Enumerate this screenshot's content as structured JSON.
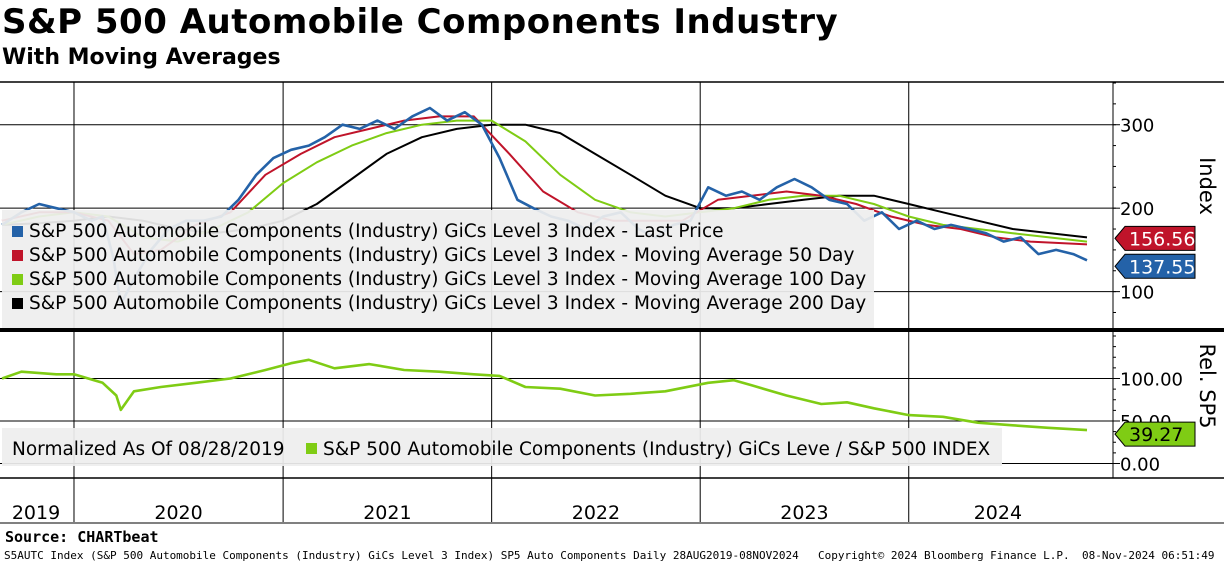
{
  "header": {
    "title": "S&P 500 Automobile Components Industry",
    "subtitle": "With Moving Averages"
  },
  "colors": {
    "last_price": "#2462a8",
    "ma50": "#c0142a",
    "ma100": "#7fcc14",
    "ma200": "#000000",
    "rel": "#7fcc14",
    "legend_bg": "#eeeeee"
  },
  "chart_data": [
    {
      "type": "line",
      "panel": "upper",
      "ylabel": "Index",
      "ylim": [
        60,
        350
      ],
      "yticks": [
        {
          "value": 100,
          "label": "100"
        },
        {
          "value": 200,
          "label": "200"
        },
        {
          "value": 300,
          "label": "300"
        }
      ],
      "grid": true,
      "legend_position": "bottom-left",
      "last_value_labels": [
        {
          "series": "ma50",
          "label": "156.56",
          "value": 156.56
        },
        {
          "series": "last_price",
          "label": "137.55",
          "value": 137.55
        }
      ],
      "series": [
        {
          "name": "S&P 500 Automobile Components (Industry) GiCs Level 3 Index - Last Price",
          "key": "last_price",
          "x": [
            "2019-08-28",
            "2019-10-01",
            "2019-11-01",
            "2019-12-01",
            "2020-01-01",
            "2020-02-01",
            "2020-02-20",
            "2020-03-10",
            "2020-03-23",
            "2020-04-15",
            "2020-05-15",
            "2020-06-15",
            "2020-07-15",
            "2020-08-15",
            "2020-09-15",
            "2020-10-15",
            "2020-11-15",
            "2020-12-15",
            "2021-01-15",
            "2021-02-15",
            "2021-03-15",
            "2021-04-15",
            "2021-05-15",
            "2021-06-15",
            "2021-07-15",
            "2021-08-15",
            "2021-09-15",
            "2021-10-15",
            "2021-11-15",
            "2021-12-15",
            "2022-01-15",
            "2022-02-15",
            "2022-03-15",
            "2022-04-15",
            "2022-05-15",
            "2022-06-15",
            "2022-07-15",
            "2022-08-15",
            "2022-09-15",
            "2022-10-15",
            "2022-11-15",
            "2022-12-15",
            "2023-01-15",
            "2023-02-15",
            "2023-03-15",
            "2023-04-15",
            "2023-05-15",
            "2023-06-15",
            "2023-07-15",
            "2023-08-15",
            "2023-09-15",
            "2023-10-15",
            "2023-11-15",
            "2023-12-15",
            "2024-01-15",
            "2024-02-15",
            "2024-03-15",
            "2024-04-15",
            "2024-05-15",
            "2024-06-15",
            "2024-07-15",
            "2024-08-15",
            "2024-09-15",
            "2024-10-15",
            "2024-11-08"
          ],
          "values": [
            180,
            195,
            205,
            200,
            195,
            185,
            190,
            140,
            85,
            115,
            150,
            175,
            185,
            185,
            190,
            210,
            240,
            260,
            270,
            275,
            285,
            300,
            295,
            305,
            295,
            310,
            320,
            305,
            315,
            300,
            260,
            210,
            200,
            190,
            185,
            175,
            190,
            195,
            175,
            165,
            180,
            185,
            225,
            215,
            220,
            210,
            225,
            235,
            225,
            210,
            205,
            185,
            195,
            175,
            185,
            175,
            180,
            175,
            170,
            160,
            165,
            145,
            150,
            145,
            137.55
          ]
        },
        {
          "name": "S&P 500 Automobile Components (Industry) GiCs Level 3 Index - Moving Average 50 Day",
          "key": "ma50",
          "x": [
            "2019-08-28",
            "2019-11-01",
            "2020-01-01",
            "2020-03-01",
            "2020-04-15",
            "2020-06-01",
            "2020-08-01",
            "2020-10-01",
            "2020-12-01",
            "2021-02-01",
            "2021-04-01",
            "2021-06-01",
            "2021-08-01",
            "2021-10-01",
            "2021-12-01",
            "2022-02-01",
            "2022-04-01",
            "2022-06-01",
            "2022-08-01",
            "2022-10-01",
            "2022-12-01",
            "2023-02-01",
            "2023-04-01",
            "2023-06-01",
            "2023-08-01",
            "2023-10-01",
            "2023-12-01",
            "2024-02-01",
            "2024-04-01",
            "2024-06-01",
            "2024-08-01",
            "2024-11-08"
          ],
          "values": [
            185,
            195,
            195,
            185,
            145,
            150,
            180,
            195,
            240,
            265,
            285,
            295,
            305,
            310,
            310,
            265,
            220,
            195,
            185,
            185,
            185,
            210,
            215,
            220,
            215,
            205,
            190,
            180,
            175,
            165,
            160,
            156.56
          ]
        },
        {
          "name": "S&P 500 Automobile Components (Industry) GiCs Level 3 Index - Moving Average 100 Day",
          "key": "ma100",
          "x": [
            "2019-08-28",
            "2019-11-01",
            "2020-01-01",
            "2020-03-01",
            "2020-05-01",
            "2020-07-01",
            "2020-09-01",
            "2020-11-01",
            "2021-01-01",
            "2021-03-01",
            "2021-05-01",
            "2021-07-01",
            "2021-09-01",
            "2021-11-01",
            "2022-01-01",
            "2022-03-01",
            "2022-05-01",
            "2022-07-01",
            "2022-09-01",
            "2022-11-01",
            "2023-01-01",
            "2023-03-01",
            "2023-05-01",
            "2023-07-01",
            "2023-09-01",
            "2023-11-01",
            "2024-01-01",
            "2024-03-01",
            "2024-05-01",
            "2024-07-01",
            "2024-11-08"
          ],
          "values": [
            180,
            190,
            195,
            190,
            165,
            160,
            175,
            195,
            230,
            255,
            275,
            290,
            300,
            305,
            305,
            280,
            240,
            210,
            195,
            190,
            195,
            200,
            210,
            215,
            215,
            205,
            190,
            180,
            175,
            170,
            160
          ]
        },
        {
          "name": "S&P 500 Automobile Components (Industry) GiCs Level 3 Index - Moving Average 200 Day",
          "key": "ma200",
          "x": [
            "2019-08-28",
            "2019-11-01",
            "2020-01-01",
            "2020-03-01",
            "2020-05-01",
            "2020-07-01",
            "2020-09-01",
            "2020-11-01",
            "2021-01-01",
            "2021-03-01",
            "2021-05-01",
            "2021-07-01",
            "2021-09-01",
            "2021-11-01",
            "2022-01-01",
            "2022-03-01",
            "2022-05-01",
            "2022-07-01",
            "2022-09-01",
            "2022-11-01",
            "2023-01-01",
            "2023-03-01",
            "2023-05-01",
            "2023-07-01",
            "2023-09-01",
            "2023-11-01",
            "2024-01-01",
            "2024-03-01",
            "2024-05-01",
            "2024-07-01",
            "2024-11-08"
          ],
          "values": [
            180,
            182,
            185,
            190,
            185,
            175,
            170,
            175,
            185,
            205,
            235,
            265,
            285,
            295,
            300,
            300,
            290,
            265,
            240,
            215,
            200,
            200,
            205,
            210,
            215,
            215,
            205,
            195,
            185,
            175,
            165
          ]
        }
      ]
    },
    {
      "type": "line",
      "panel": "lower",
      "ylabel": "Rel. SP5",
      "ylim": [
        -10,
        150
      ],
      "yticks": [
        {
          "value": 0,
          "label": "0.00"
        },
        {
          "value": 50,
          "label": "50.00"
        },
        {
          "value": 100,
          "label": "100.00"
        }
      ],
      "grid": true,
      "legend_position": "bottom-left",
      "legend_prefix": "Normalized As Of 08/28/2019",
      "last_value_labels": [
        {
          "series": "rel",
          "label": "39.27",
          "value": 39.27
        }
      ],
      "series": [
        {
          "name": "S&P 500 Automobile Components (Industry) GiCs Leve / S&P 500 INDEX",
          "key": "rel",
          "x": [
            "2019-08-28",
            "2019-10-01",
            "2019-12-01",
            "2020-01-01",
            "2020-02-20",
            "2020-03-15",
            "2020-03-23",
            "2020-04-15",
            "2020-06-01",
            "2020-08-01",
            "2020-10-01",
            "2020-12-01",
            "2021-01-15",
            "2021-02-15",
            "2021-04-01",
            "2021-06-01",
            "2021-08-01",
            "2021-10-01",
            "2021-12-01",
            "2022-01-15",
            "2022-03-01",
            "2022-05-01",
            "2022-07-01",
            "2022-09-01",
            "2022-11-01",
            "2023-01-15",
            "2023-03-01",
            "2023-04-01",
            "2023-06-01",
            "2023-08-01",
            "2023-09-15",
            "2023-11-01",
            "2024-01-01",
            "2024-03-01",
            "2024-05-01",
            "2024-07-01",
            "2024-09-01",
            "2024-11-08"
          ],
          "values": [
            100,
            108,
            105,
            105,
            95,
            80,
            63,
            85,
            90,
            95,
            100,
            110,
            118,
            122,
            112,
            117,
            110,
            108,
            105,
            103,
            90,
            88,
            80,
            82,
            85,
            95,
            98,
            92,
            80,
            70,
            72,
            65,
            57,
            55,
            48,
            45,
            42,
            39.27
          ]
        }
      ]
    }
  ],
  "x_axis": {
    "years": [
      "2019",
      "2020",
      "2021",
      "2022",
      "2023",
      "2024"
    ],
    "start": "2019-08-28",
    "end": "2024-11-08"
  },
  "footer": {
    "source": "Source: CHARTbeat",
    "description": "S5AUTC Index (S&P 500 Automobile Components (Industry) GiCs Level 3 Index) SP5 Auto Components  Daily 28AUG2019-08NOV2024",
    "copyright": "Copyright© 2024 Bloomberg Finance L.P.",
    "timestamp": "08-Nov-2024 06:51:49"
  }
}
